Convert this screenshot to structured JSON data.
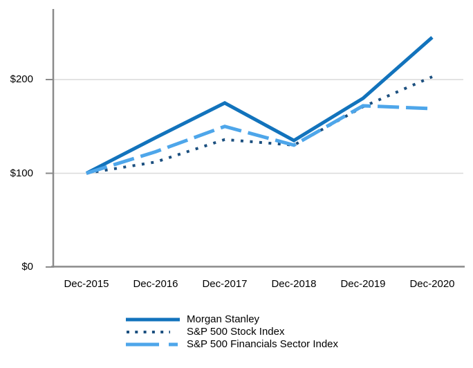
{
  "chart_data": {
    "type": "line",
    "title": "",
    "xlabel": "",
    "ylabel": "",
    "categories": [
      "Dec-2015",
      "Dec-2016",
      "Dec-2017",
      "Dec-2018",
      "Dec-2019",
      "Dec-2020"
    ],
    "series": [
      {
        "name": "Morgan Stanley",
        "style": "solid",
        "color": "#1273BC",
        "values": [
          100,
          138,
          175,
          135,
          180,
          245
        ]
      },
      {
        "name": "S&P 500 Stock Index",
        "style": "dotted",
        "color": "#1B4F7F",
        "values": [
          100,
          112,
          136,
          130,
          171,
          203
        ]
      },
      {
        "name": "S&P 500 Financials Sector Index",
        "style": "dashed",
        "color": "#4EA6EA",
        "values": [
          100,
          123,
          150,
          130,
          172,
          169
        ]
      }
    ],
    "y_ticks": [
      {
        "value": 0,
        "label": "$0"
      },
      {
        "value": 100,
        "label": "$100"
      },
      {
        "value": 200,
        "label": "$200"
      }
    ],
    "ylim": [
      0,
      275
    ],
    "grid": "horizontal",
    "legend_position": "bottom",
    "colors": {
      "axis": "#8A8A8A",
      "gridline": "#DADADA",
      "text": "#000000",
      "background": "#FFFFFF"
    }
  }
}
